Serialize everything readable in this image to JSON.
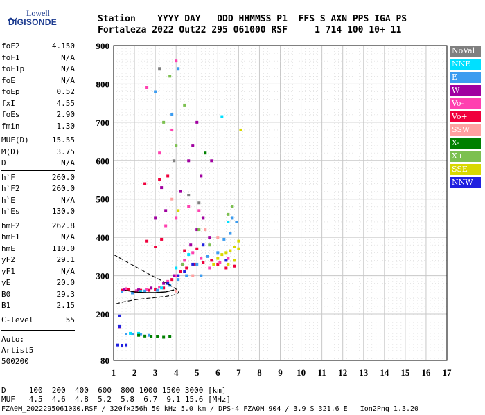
{
  "logo": {
    "top": "Lowell",
    "bottom": "DIGISONDE"
  },
  "header": {
    "labels": "Station    YYYY DAY   DDD HHMMSS P1  FFS S AXN PPS IGA PS",
    "values": "Fortaleza 2022 Out22 295 061000 RSF     1 714 100 10+ 11"
  },
  "params": [
    {
      "name": "foF2",
      "value": "4.150"
    },
    {
      "name": "foF1",
      "value": "N/A"
    },
    {
      "name": "foF1p",
      "value": "N/A"
    },
    {
      "name": "foE",
      "value": "N/A"
    },
    {
      "name": "foEp",
      "value": "0.52"
    },
    {
      "name": "fxI",
      "value": "4.55"
    },
    {
      "name": "foEs",
      "value": "2.90"
    },
    {
      "name": "fmin",
      "value": "1.30"
    },
    {
      "name": "MUF(D)",
      "value": "15.55"
    },
    {
      "name": "M(D)",
      "value": "3.75"
    },
    {
      "name": "D",
      "value": "N/A"
    },
    {
      "name": "h`F",
      "value": "260.0"
    },
    {
      "name": "h`F2",
      "value": "260.0"
    },
    {
      "name": "h`E",
      "value": "N/A"
    },
    {
      "name": "h`Es",
      "value": "130.0"
    },
    {
      "name": "hmF2",
      "value": "262.8"
    },
    {
      "name": "hmF1",
      "value": "N/A"
    },
    {
      "name": "hmE",
      "value": "110.0"
    },
    {
      "name": "yF2",
      "value": "29.1"
    },
    {
      "name": "yF1",
      "value": "N/A"
    },
    {
      "name": "yE",
      "value": "20.0"
    },
    {
      "name": "B0",
      "value": "29.3"
    },
    {
      "name": "B1",
      "value": "2.15"
    },
    {
      "name": "C-level",
      "value": "55"
    }
  ],
  "auto": {
    "l1": "Auto:",
    "l2": "Artist5",
    "l3": "500200"
  },
  "legend": [
    {
      "label": "NoVal",
      "color": "#808080"
    },
    {
      "label": "NNE",
      "color": "#00e0ff"
    },
    {
      "label": "E",
      "color": "#3c9cf0"
    },
    {
      "label": "W",
      "color": "#a000a0"
    },
    {
      "label": "Vo-",
      "color": "#ff40b0"
    },
    {
      "label": "Vo+",
      "color": "#f0003c"
    },
    {
      "label": "SSW",
      "color": "#ffa0a0"
    },
    {
      "label": "X-",
      "color": "#008000"
    },
    {
      "label": "X+",
      "color": "#7cc050"
    },
    {
      "label": "SSE",
      "color": "#d8d800"
    },
    {
      "label": "NNW",
      "color": "#2020e0"
    }
  ],
  "footer": {
    "dline": "D     100  200  400  600  800 1000 1500 3000 [km]",
    "mufline": "MUF   4.5  4.6  4.8  5.2  5.8  6.7  9.1 15.6 [MHz]",
    "fileline": "FZA0M_2022295061000.RSF / 320fx256h 50 kHz 5.0 km / DPS-4 FZA0M 904 / 3.9 S 321.6 E   Ion2Png 1.3.20"
  },
  "chart_data": {
    "type": "scatter",
    "title": "",
    "xlabel": "",
    "ylabel": "",
    "xlim": [
      1,
      17
    ],
    "ylim": [
      80,
      900
    ],
    "xticks": [
      "1",
      "2",
      "3",
      "4",
      "5",
      "6",
      "7",
      "8",
      "9",
      "10",
      "11",
      "12",
      "13",
      "14",
      "15",
      "16",
      "17"
    ],
    "yticks": [
      "80",
      "200",
      "300",
      "400",
      "500",
      "600",
      "700",
      "800",
      "900"
    ],
    "grid": true,
    "profile_curve": {
      "x": [
        1.0,
        1.5,
        2.0,
        2.5,
        3.0,
        3.5,
        3.8,
        4.0,
        4.15,
        4.1,
        3.9,
        3.5,
        3.0,
        2.5,
        2.0,
        1.5,
        1.0
      ],
      "y": [
        355,
        340,
        325,
        310,
        295,
        282,
        272,
        265,
        262,
        255,
        250,
        246,
        243,
        240,
        237,
        232,
        225
      ],
      "trace": {
        "x": [
          1.55,
          2.0,
          2.5,
          3.0,
          3.5,
          3.9
        ],
        "y": [
          262,
          258,
          256,
          256,
          258,
          263
        ]
      }
    },
    "series": [
      {
        "color": "#f0003c",
        "points": [
          [
            1.4,
            262
          ],
          [
            1.7,
            264
          ],
          [
            2.0,
            258
          ],
          [
            2.3,
            262
          ],
          [
            2.7,
            262
          ],
          [
            3.0,
            265
          ],
          [
            3.4,
            268
          ],
          [
            3.8,
            290
          ],
          [
            4.2,
            310
          ],
          [
            4.5,
            320
          ],
          [
            4.9,
            330
          ],
          [
            5.3,
            335
          ],
          [
            5.7,
            340
          ],
          [
            6.0,
            330
          ],
          [
            6.4,
            320
          ],
          [
            6.8,
            325
          ],
          [
            2.6,
            390
          ],
          [
            3.0,
            375
          ],
          [
            3.3,
            395
          ],
          [
            4.4,
            365
          ],
          [
            5.0,
            370
          ],
          [
            3.2,
            550
          ],
          [
            3.6,
            560
          ],
          [
            2.5,
            540
          ]
        ]
      },
      {
        "color": "#ff40b0",
        "points": [
          [
            1.6,
            266
          ],
          [
            2.1,
            261
          ],
          [
            2.6,
            264
          ],
          [
            3.2,
            270
          ],
          [
            3.6,
            285
          ],
          [
            4.0,
            300
          ],
          [
            4.4,
            340
          ],
          [
            4.8,
            360
          ],
          [
            5.2,
            345
          ],
          [
            5.6,
            320
          ],
          [
            6.1,
            335
          ],
          [
            6.5,
            345
          ],
          [
            3.5,
            430
          ],
          [
            4.0,
            450
          ],
          [
            4.6,
            480
          ],
          [
            5.1,
            470
          ],
          [
            3.2,
            620
          ],
          [
            3.8,
            680
          ],
          [
            4.0,
            860
          ],
          [
            2.6,
            790
          ]
        ]
      },
      {
        "color": "#a000a0",
        "points": [
          [
            1.5,
            263
          ],
          [
            2.2,
            263
          ],
          [
            2.8,
            268
          ],
          [
            3.4,
            280
          ],
          [
            3.9,
            300
          ],
          [
            4.3,
            330
          ],
          [
            4.7,
            380
          ],
          [
            5.0,
            420
          ],
          [
            5.3,
            450
          ],
          [
            5.6,
            400
          ],
          [
            3.0,
            450
          ],
          [
            3.5,
            470
          ],
          [
            4.2,
            520
          ],
          [
            4.6,
            600
          ],
          [
            5.2,
            560
          ],
          [
            5.7,
            600
          ],
          [
            4.8,
            640
          ],
          [
            5.0,
            700
          ],
          [
            3.3,
            530
          ],
          [
            1.3,
            167
          ]
        ]
      },
      {
        "color": "#3c9cf0",
        "points": [
          [
            1.4,
            258
          ],
          [
            1.9,
            255
          ],
          [
            2.5,
            260
          ],
          [
            3.1,
            262
          ],
          [
            3.7,
            275
          ],
          [
            4.1,
            290
          ],
          [
            4.5,
            300
          ],
          [
            5.0,
            330
          ],
          [
            5.5,
            350
          ],
          [
            6.0,
            360
          ],
          [
            6.3,
            395
          ],
          [
            6.6,
            410
          ],
          [
            6.7,
            450
          ],
          [
            6.9,
            440
          ],
          [
            5.2,
            300
          ],
          [
            1.6,
            148
          ],
          [
            1.9,
            148
          ],
          [
            2.3,
            147
          ],
          [
            2.7,
            145
          ],
          [
            3.8,
            720
          ],
          [
            4.1,
            840
          ],
          [
            3.0,
            780
          ]
        ]
      },
      {
        "color": "#00e0ff",
        "points": [
          [
            2.3,
            259
          ],
          [
            3.3,
            268
          ],
          [
            4.0,
            320
          ],
          [
            4.6,
            355
          ],
          [
            6.5,
            440
          ],
          [
            6.2,
            715
          ],
          [
            1.8,
            150
          ],
          [
            2.2,
            150
          ]
        ]
      },
      {
        "color": "#2020e0",
        "points": [
          [
            3.6,
            280
          ],
          [
            4.1,
            300
          ],
          [
            4.4,
            310
          ],
          [
            4.8,
            330
          ],
          [
            5.3,
            380
          ],
          [
            6.4,
            340
          ],
          [
            1.2,
            120
          ],
          [
            1.4,
            118
          ],
          [
            1.6,
            120
          ],
          [
            1.3,
            168
          ],
          [
            1.3,
            195
          ]
        ]
      },
      {
        "color": "#d8d800",
        "points": [
          [
            5.8,
            330
          ],
          [
            6.0,
            345
          ],
          [
            6.2,
            355
          ],
          [
            6.4,
            360
          ],
          [
            6.6,
            365
          ],
          [
            6.8,
            375
          ],
          [
            7.0,
            370
          ],
          [
            6.5,
            330
          ],
          [
            6.8,
            340
          ],
          [
            7.0,
            390
          ],
          [
            7.1,
            680
          ],
          [
            4.1,
            470
          ]
        ]
      },
      {
        "color": "#7cc050",
        "points": [
          [
            4.3,
            330
          ],
          [
            5.1,
            420
          ],
          [
            5.6,
            380
          ],
          [
            4.0,
            640
          ],
          [
            3.4,
            700
          ],
          [
            3.7,
            820
          ],
          [
            4.4,
            745
          ],
          [
            6.5,
            460
          ],
          [
            6.7,
            480
          ]
        ]
      },
      {
        "color": "#008000",
        "points": [
          [
            2.5,
            143
          ],
          [
            2.8,
            142
          ],
          [
            3.1,
            141
          ],
          [
            3.4,
            140
          ],
          [
            3.7,
            142
          ],
          [
            2.2,
            145
          ],
          [
            5.4,
            620
          ]
        ]
      },
      {
        "color": "#ffa0a0",
        "points": [
          [
            4.0,
            260
          ],
          [
            4.8,
            300
          ],
          [
            5.4,
            420
          ],
          [
            6.0,
            400
          ],
          [
            3.8,
            500
          ]
        ]
      },
      {
        "color": "#808080",
        "points": [
          [
            5.1,
            490
          ],
          [
            4.6,
            510
          ],
          [
            3.2,
            840
          ],
          [
            3.9,
            600
          ]
        ]
      }
    ]
  }
}
